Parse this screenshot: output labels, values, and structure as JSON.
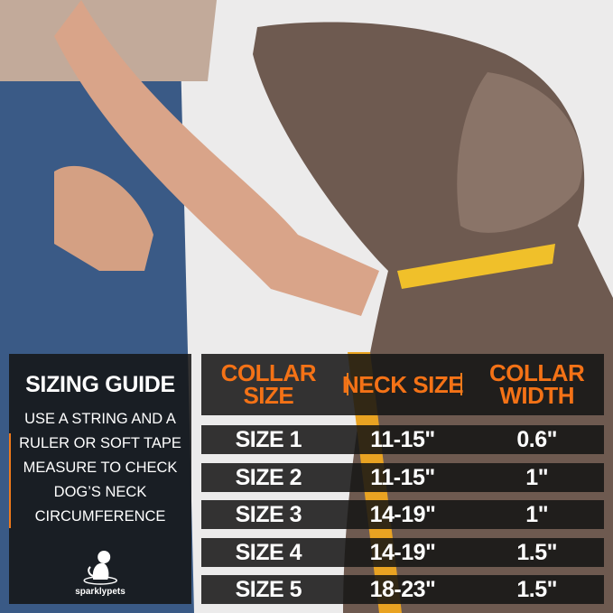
{
  "guide": {
    "title": "SIZING GUIDE",
    "instructions": "USE A STRING AND A RULER OR SOFT TAPE MEASURE TO CHECK DOG’S NECK CIRCUMFERENCE",
    "brand": "sparklypets"
  },
  "table": {
    "headers": [
      "COLLAR SIZE",
      "NECK SIZE",
      "COLLAR WIDTH"
    ],
    "rows": [
      [
        "SIZE 1",
        "11-15\"",
        "0.6\""
      ],
      [
        "SIZE 2",
        "11-15\"",
        "1\""
      ],
      [
        "SIZE 3",
        "14-19\"",
        "1\""
      ],
      [
        "SIZE 4",
        "14-19\"",
        "1.5\""
      ],
      [
        "SIZE 5",
        "18-23\"",
        "1.5\""
      ]
    ]
  },
  "colors": {
    "accent": "#f47216",
    "panel": "#141414"
  }
}
